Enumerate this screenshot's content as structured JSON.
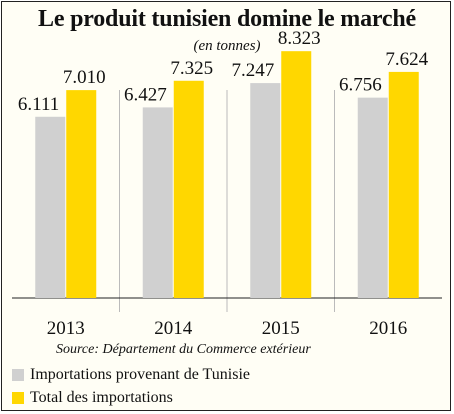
{
  "chart_data": {
    "type": "bar",
    "title": "Le produit tunisien domine le marché",
    "subtitle": "(en tonnes)",
    "categories": [
      "2013",
      "2014",
      "2015",
      "2016"
    ],
    "series": [
      {
        "name": "Importations provenant de Tunisie",
        "values": [
          6.111,
          6.427,
          7.247,
          6.756
        ],
        "labels": [
          "6.111",
          "6.427",
          "7.247",
          "6.756"
        ],
        "color": "#d0d0d0"
      },
      {
        "name": "Total des importations",
        "values": [
          7.01,
          7.325,
          8.323,
          7.624
        ],
        "labels": [
          "7.010",
          "7.325",
          "8.323",
          "7.624"
        ],
        "color": "#ffd700"
      }
    ],
    "ylim": [
      0,
      8.7
    ],
    "grid": false,
    "legend_position": "bottom-left",
    "source": "Source: Département du Commerce extérieur"
  }
}
